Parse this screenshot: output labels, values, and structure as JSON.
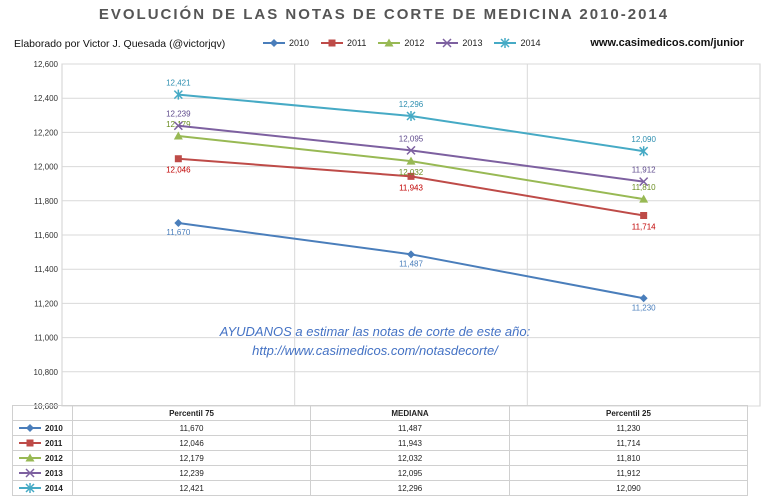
{
  "header": {
    "title": "EVOLUCIÓN DE LAS NOTAS DE CORTE DE MEDICINA 2010-2014",
    "byline": "Elaborado por Victor J. Quesada (@victorjqv)",
    "site": "www.casimedicos.com/junior"
  },
  "promo": {
    "line1": "AYUDANOS a estimar las notas de corte de este año:",
    "line2": "http://www.casimedicos.com/notasdecorte/"
  },
  "chart_data": {
    "type": "line",
    "title": "EVOLUCIÓN DE LAS NOTAS DE CORTE DE MEDICINA 2010-2014",
    "categories": [
      "Percentil 75",
      "MEDIANA",
      "Percentil 25"
    ],
    "ylim": [
      10.6,
      12.6
    ],
    "yticks": [
      "10,600",
      "10,800",
      "11,000",
      "11,200",
      "11,400",
      "11,600",
      "11,800",
      "12,000",
      "12,200",
      "12,400",
      "12,600"
    ],
    "ytick_values": [
      10.6,
      10.8,
      11.0,
      11.2,
      11.4,
      11.6,
      11.8,
      12.0,
      12.2,
      12.4,
      12.6
    ],
    "grid": true,
    "legend": "top",
    "series": [
      {
        "name": "2010",
        "values": [
          11.67,
          11.487,
          11.23
        ],
        "labels": [
          "11,670",
          "11,487",
          "11,230"
        ],
        "color": "#4A7EBB",
        "marker": "diamond",
        "label_color": "#4A7EBB"
      },
      {
        "name": "2011",
        "values": [
          12.046,
          11.943,
          11.714
        ],
        "labels": [
          "12,046",
          "11,943",
          "11,714"
        ],
        "color": "#BE4B48",
        "marker": "square",
        "label_color": "#C00000"
      },
      {
        "name": "2012",
        "values": [
          12.179,
          12.032,
          11.81
        ],
        "labels": [
          "12,179",
          "12,032",
          "11,810"
        ],
        "color": "#98B954",
        "marker": "triangle",
        "label_color": "#6B8E23"
      },
      {
        "name": "2013",
        "values": [
          12.239,
          12.095,
          11.912
        ],
        "labels": [
          "12,239",
          "12,095",
          "11,912"
        ],
        "color": "#7D60A0",
        "marker": "x",
        "label_color": "#5E4A8C"
      },
      {
        "name": "2014",
        "values": [
          12.421,
          12.296,
          12.09
        ],
        "labels": [
          "12,421",
          "12,296",
          "12,090"
        ],
        "color": "#46AAC5",
        "marker": "star",
        "label_color": "#2E8FB0"
      }
    ]
  }
}
